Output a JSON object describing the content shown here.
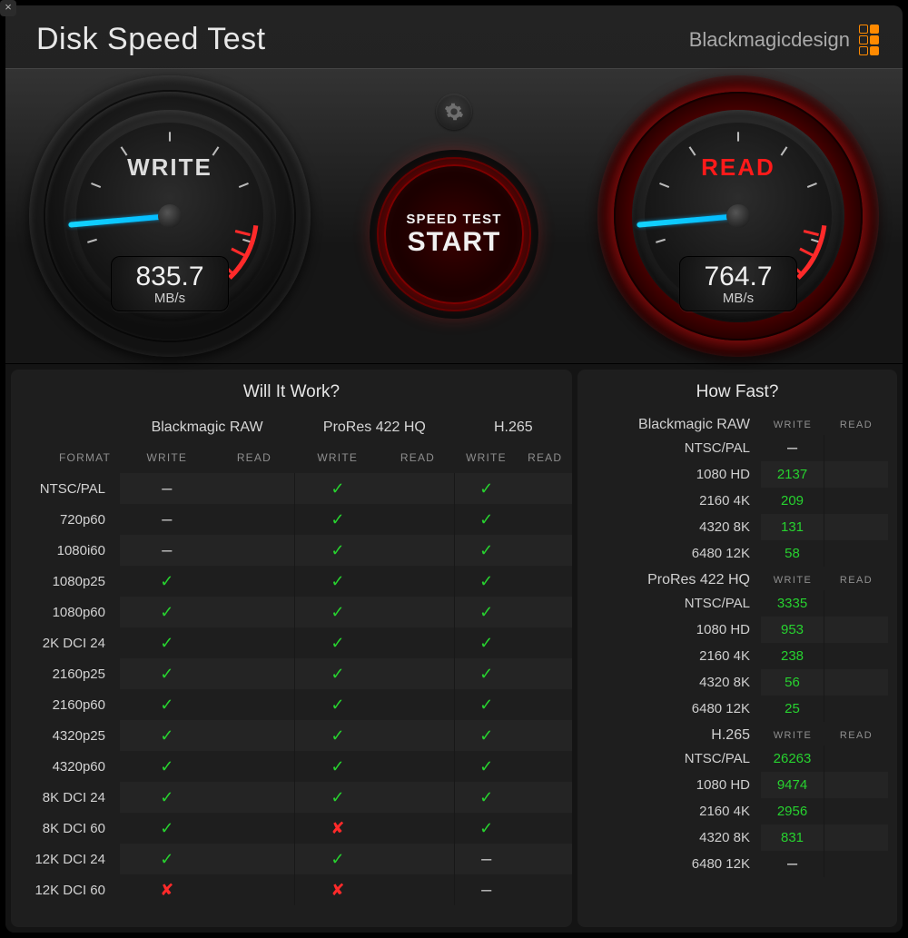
{
  "header": {
    "title": "Disk Speed Test",
    "brand": "Blackmagicdesign"
  },
  "gauges": {
    "write": {
      "label": "WRITE",
      "value": "835.7",
      "unit": "MB/s",
      "needle_angle_deg": 175,
      "needle_color": "#14d4ff",
      "redline_color": "#ff2a2a"
    },
    "read": {
      "label": "READ",
      "value": "764.7",
      "unit": "MB/s",
      "needle_angle_deg": 175,
      "needle_color": "#14d4ff",
      "glow_color": "#ff1a1a"
    }
  },
  "start_button": {
    "line1": "SPEED TEST",
    "line2": "START"
  },
  "settings_icon": "gear",
  "close_glyph": "×",
  "colors": {
    "bg": "#1e1e1e",
    "bg_alt": "#242424",
    "text": "#d0d0d0",
    "muted": "#8e8e8e",
    "check": "#27d22f",
    "cross": "#ff2a2a",
    "accent_blue": "#14d4ff",
    "accent_orange": "#ff8a00"
  },
  "will_it_work": {
    "title": "Will It Work?",
    "format_header": "FORMAT",
    "sub_headers": [
      "WRITE",
      "READ"
    ],
    "groups": [
      "Blackmagic RAW",
      "ProRes 422 HQ",
      "H.265"
    ],
    "rows": [
      {
        "fmt": "NTSC/PAL",
        "cells": [
          "dash",
          "",
          "check",
          "",
          "check",
          ""
        ]
      },
      {
        "fmt": "720p60",
        "cells": [
          "dash",
          "",
          "check",
          "",
          "check",
          ""
        ]
      },
      {
        "fmt": "1080i60",
        "cells": [
          "dash",
          "",
          "check",
          "",
          "check",
          ""
        ]
      },
      {
        "fmt": "1080p25",
        "cells": [
          "check",
          "",
          "check",
          "",
          "check",
          ""
        ]
      },
      {
        "fmt": "1080p60",
        "cells": [
          "check",
          "",
          "check",
          "",
          "check",
          ""
        ]
      },
      {
        "fmt": "2K DCI 24",
        "cells": [
          "check",
          "",
          "check",
          "",
          "check",
          ""
        ]
      },
      {
        "fmt": "2160p25",
        "cells": [
          "check",
          "",
          "check",
          "",
          "check",
          ""
        ]
      },
      {
        "fmt": "2160p60",
        "cells": [
          "check",
          "",
          "check",
          "",
          "check",
          ""
        ]
      },
      {
        "fmt": "4320p25",
        "cells": [
          "check",
          "",
          "check",
          "",
          "check",
          ""
        ]
      },
      {
        "fmt": "4320p60",
        "cells": [
          "check",
          "",
          "check",
          "",
          "check",
          ""
        ]
      },
      {
        "fmt": "8K DCI 24",
        "cells": [
          "check",
          "",
          "check",
          "",
          "check",
          ""
        ]
      },
      {
        "fmt": "8K DCI 60",
        "cells": [
          "check",
          "",
          "cross",
          "",
          "check",
          ""
        ]
      },
      {
        "fmt": "12K DCI 24",
        "cells": [
          "check",
          "",
          "check",
          "",
          "dash",
          ""
        ]
      },
      {
        "fmt": "12K DCI 60",
        "cells": [
          "cross",
          "",
          "cross",
          "",
          "dash",
          ""
        ]
      }
    ]
  },
  "how_fast": {
    "title": "How Fast?",
    "sub_headers": [
      "WRITE",
      "READ"
    ],
    "sections": [
      {
        "label": "Blackmagic RAW",
        "rows": [
          {
            "fmt": "NTSC/PAL",
            "write": "-",
            "read": ""
          },
          {
            "fmt": "1080 HD",
            "write": "2137",
            "read": ""
          },
          {
            "fmt": "2160 4K",
            "write": "209",
            "read": ""
          },
          {
            "fmt": "4320 8K",
            "write": "131",
            "read": ""
          },
          {
            "fmt": "6480 12K",
            "write": "58",
            "read": ""
          }
        ]
      },
      {
        "label": "ProRes 422 HQ",
        "rows": [
          {
            "fmt": "NTSC/PAL",
            "write": "3335",
            "read": ""
          },
          {
            "fmt": "1080 HD",
            "write": "953",
            "read": ""
          },
          {
            "fmt": "2160 4K",
            "write": "238",
            "read": ""
          },
          {
            "fmt": "4320 8K",
            "write": "56",
            "read": ""
          },
          {
            "fmt": "6480 12K",
            "write": "25",
            "read": ""
          }
        ]
      },
      {
        "label": "H.265",
        "rows": [
          {
            "fmt": "NTSC/PAL",
            "write": "26263",
            "read": ""
          },
          {
            "fmt": "1080 HD",
            "write": "9474",
            "read": ""
          },
          {
            "fmt": "2160 4K",
            "write": "2956",
            "read": ""
          },
          {
            "fmt": "4320 8K",
            "write": "831",
            "read": ""
          },
          {
            "fmt": "6480 12K",
            "write": "-",
            "read": ""
          }
        ]
      }
    ]
  }
}
